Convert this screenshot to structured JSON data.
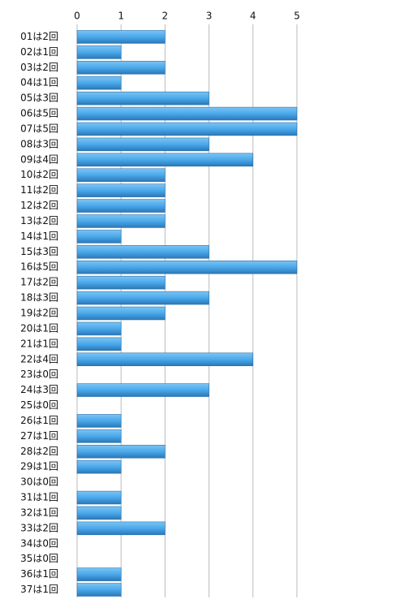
{
  "chart_data": {
    "type": "bar",
    "orientation": "horizontal",
    "categories": [
      "01は2回",
      "02は1回",
      "03は2回",
      "04は1回",
      "05は3回",
      "06は5回",
      "07は5回",
      "08は3回",
      "09は4回",
      "10は2回",
      "11は2回",
      "12は2回",
      "13は2回",
      "14は1回",
      "15は3回",
      "16は5回",
      "17は2回",
      "18は3回",
      "19は2回",
      "20は1回",
      "21は1回",
      "22は4回",
      "23は0回",
      "24は3回",
      "25は0回",
      "26は1回",
      "27は1回",
      "28は2回",
      "29は1回",
      "30は0回",
      "31は1回",
      "32は1回",
      "33は2回",
      "34は0回",
      "35は0回",
      "36は1回",
      "37は1回"
    ],
    "values": [
      2,
      1,
      2,
      1,
      3,
      5,
      5,
      3,
      4,
      2,
      2,
      2,
      2,
      1,
      3,
      5,
      2,
      3,
      2,
      1,
      1,
      4,
      0,
      3,
      0,
      1,
      1,
      2,
      1,
      0,
      1,
      1,
      2,
      0,
      0,
      1,
      1
    ],
    "color": "#4aa8ea",
    "xlim": [
      0,
      5.5
    ],
    "xticks": [
      0,
      1,
      2,
      3,
      4,
      5
    ],
    "grid": true
  }
}
